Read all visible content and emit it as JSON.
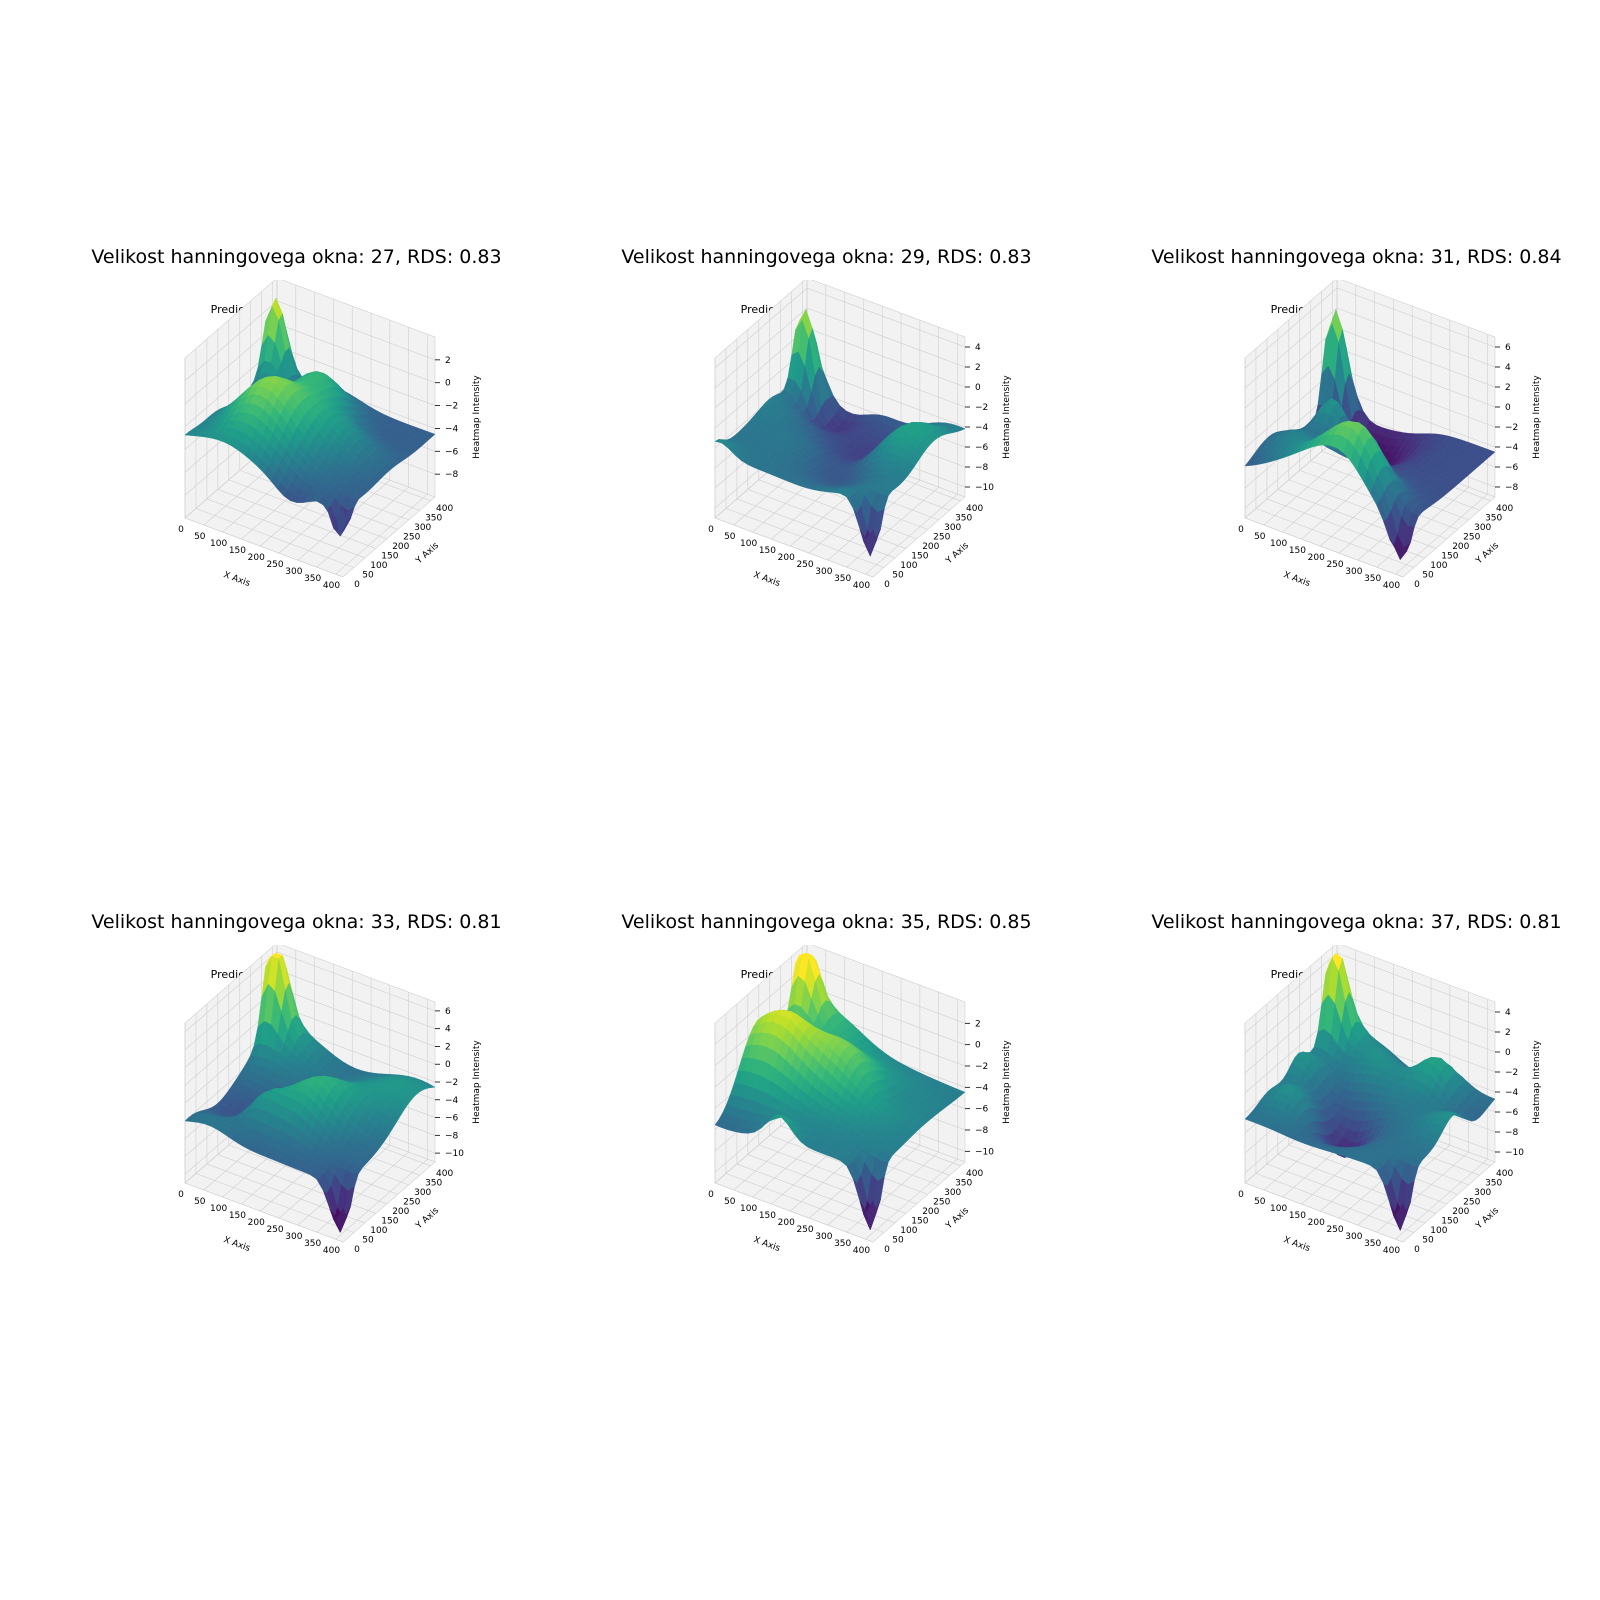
{
  "figure": {
    "layout": "2x3",
    "background": "#ffffff",
    "colormap": "viridis",
    "pane_color": "#f0f0f0",
    "grid": true
  },
  "chart_data": [
    {
      "type": "surface3d",
      "title": "Velikost hanningovega okna: 27, RDS: 0.83",
      "subtitle": "Predicted Heatmap 3D",
      "xlabel": "X Axis",
      "ylabel": "Y Axis",
      "zlabel": "Heatmap Intensity",
      "xticks": [
        0,
        50,
        100,
        150,
        200,
        250,
        300,
        350,
        400
      ],
      "yticks": [
        0,
        50,
        100,
        150,
        200,
        250,
        300,
        350,
        400
      ],
      "zticks": [
        -8,
        -6,
        -4,
        -2,
        0,
        2
      ],
      "xlim": [
        0,
        420
      ],
      "ylim": [
        0,
        420
      ],
      "zlim": [
        -10,
        4
      ],
      "peak": {
        "x": 20,
        "y": 380,
        "z": 3.5
      },
      "min": {
        "x": 400,
        "y": 20,
        "z": -9.5
      }
    },
    {
      "type": "surface3d",
      "title": "Velikost hanningovega okna: 29, RDS: 0.83",
      "subtitle": "Predicted Heatmap 3D",
      "xlabel": "X Axis",
      "ylabel": "Y Axis",
      "zlabel": "Heatmap Intensity",
      "xticks": [
        0,
        50,
        100,
        150,
        200,
        250,
        300,
        350,
        400
      ],
      "yticks": [
        0,
        50,
        100,
        150,
        200,
        250,
        300,
        350,
        400
      ],
      "zticks": [
        -10,
        -8,
        -6,
        -4,
        -2,
        0,
        2,
        4
      ],
      "xlim": [
        0,
        420
      ],
      "ylim": [
        0,
        420
      ],
      "zlim": [
        -11,
        5
      ],
      "peak": {
        "x": 20,
        "y": 380,
        "z": 4.2
      },
      "min": {
        "x": 400,
        "y": 20,
        "z": -10.5
      }
    },
    {
      "type": "surface3d",
      "title": "Velikost hanningovega okna: 31, RDS: 0.84",
      "subtitle": "Predicted Heatmap 3D",
      "xlabel": "X Axis",
      "ylabel": "Y Axis",
      "zlabel": "Heatmap Intensity",
      "xticks": [
        0,
        50,
        100,
        150,
        200,
        250,
        300,
        350,
        400
      ],
      "yticks": [
        0,
        50,
        100,
        150,
        200,
        250,
        300,
        350,
        400
      ],
      "zticks": [
        -8,
        -6,
        -4,
        -2,
        0,
        2,
        4,
        6
      ],
      "xlim": [
        0,
        420
      ],
      "ylim": [
        0,
        420
      ],
      "zlim": [
        -9,
        7
      ],
      "peak": {
        "x": 20,
        "y": 380,
        "z": 6.5
      },
      "min": {
        "x": 400,
        "y": 20,
        "z": -8.5
      }
    },
    {
      "type": "surface3d",
      "title": "Velikost hanningovega okna: 33, RDS: 0.81",
      "subtitle": "Predicted Heatmap 3D",
      "xlabel": "X Axis",
      "ylabel": "Y Axis",
      "zlabel": "Heatmap Intensity",
      "xticks": [
        0,
        50,
        100,
        150,
        200,
        250,
        300,
        350,
        400
      ],
      "yticks": [
        0,
        50,
        100,
        150,
        200,
        250,
        300,
        350,
        400
      ],
      "zticks": [
        -10,
        -8,
        -6,
        -4,
        -2,
        0,
        2,
        4,
        6
      ],
      "xlim": [
        0,
        420
      ],
      "ylim": [
        0,
        420
      ],
      "zlim": [
        -11,
        7
      ],
      "peak": {
        "x": 20,
        "y": 380,
        "z": 6.5
      },
      "min": {
        "x": 400,
        "y": 20,
        "z": -10.5
      }
    },
    {
      "type": "surface3d",
      "title": "Velikost hanningovega okna: 35, RDS: 0.85",
      "subtitle": "Predicted Heatmap 3D",
      "xlabel": "X Axis",
      "ylabel": "Y Axis",
      "zlabel": "Heatmap Intensity",
      "xticks": [
        0,
        50,
        100,
        150,
        200,
        250,
        300,
        350,
        400
      ],
      "yticks": [
        0,
        50,
        100,
        150,
        200,
        250,
        300,
        350,
        400
      ],
      "zticks": [
        -10,
        -8,
        -6,
        -4,
        -2,
        0,
        2
      ],
      "xlim": [
        0,
        420
      ],
      "ylim": [
        0,
        420
      ],
      "zlim": [
        -11,
        4
      ],
      "peak": {
        "x": 20,
        "y": 380,
        "z": 3
      },
      "min": {
        "x": 400,
        "y": 20,
        "z": -10.5
      }
    },
    {
      "type": "surface3d",
      "title": "Velikost hanningovega okna: 37, RDS: 0.81",
      "subtitle": "Predicted Heatmap 3D",
      "xlabel": "X Axis",
      "ylabel": "Y Axis",
      "zlabel": "Heatmap Intensity",
      "xticks": [
        0,
        50,
        100,
        150,
        200,
        250,
        300,
        350,
        400
      ],
      "yticks": [
        0,
        50,
        100,
        150,
        200,
        250,
        300,
        350,
        400
      ],
      "zticks": [
        -10,
        -8,
        -6,
        -4,
        -2,
        0,
        2,
        4
      ],
      "xlim": [
        0,
        420
      ],
      "ylim": [
        0,
        420
      ],
      "zlim": [
        -11,
        5
      ],
      "peak": {
        "x": 20,
        "y": 380,
        "z": 4.5
      },
      "min": {
        "x": 400,
        "y": 20,
        "z": -10.5
      }
    }
  ]
}
